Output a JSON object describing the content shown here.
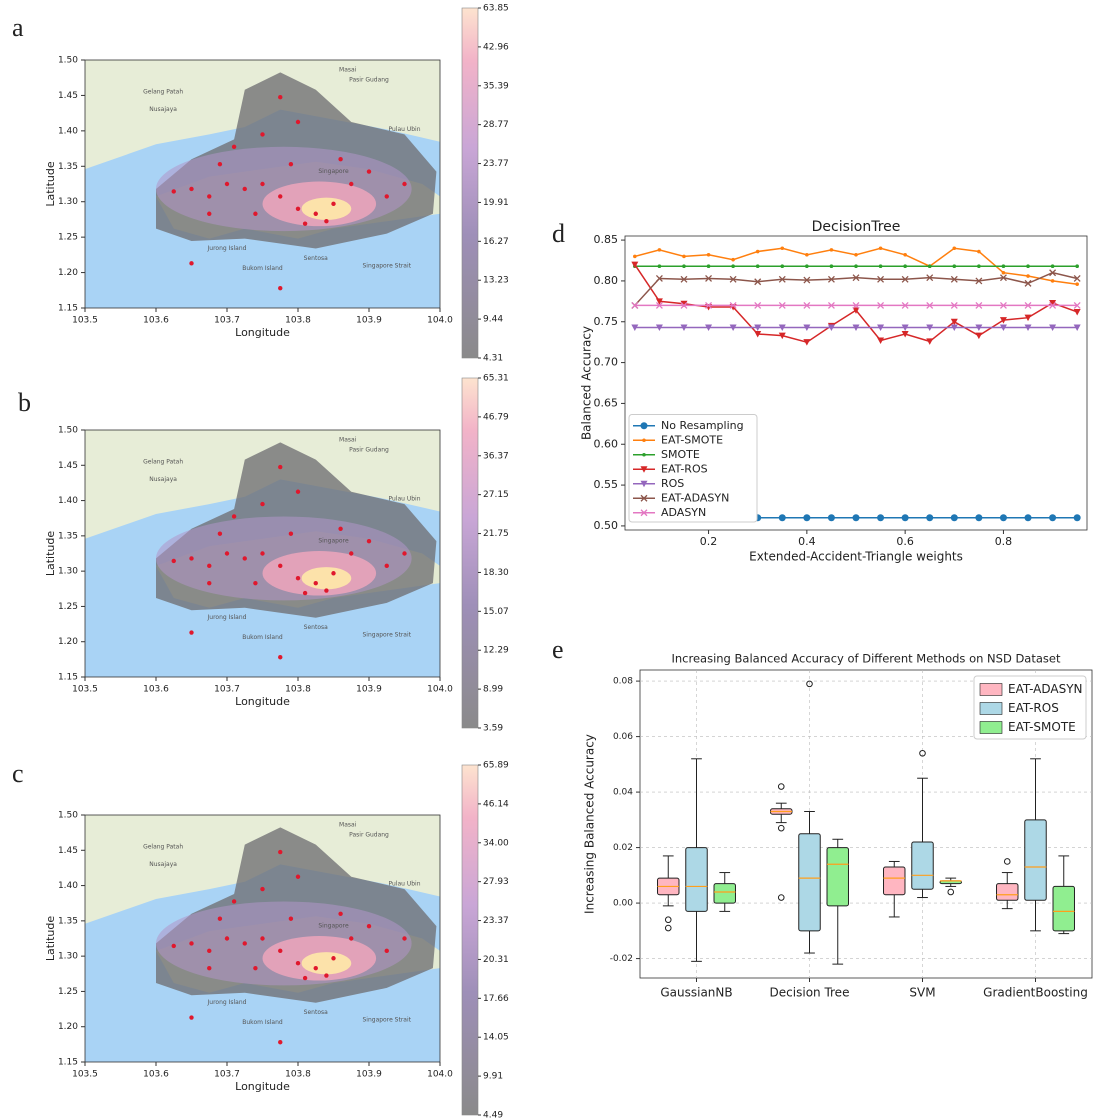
{
  "chart_data": [
    {
      "type": "map",
      "panel": "a",
      "xlabel": "Longitude",
      "ylabel": "Latitude",
      "xlim": [
        103.5,
        104.0
      ],
      "xticks": [
        103.5,
        103.6,
        103.7,
        103.8,
        103.9,
        {
          "value": 104.0,
          "label": "104.0"
        }
      ],
      "ylim": [
        1.15,
        1.5
      ],
      "yticks": [
        1.15,
        {
          "value": 1.2,
          "label": "1.20"
        },
        1.25,
        {
          "value": 1.3,
          "label": "1.30"
        },
        1.35,
        {
          "value": 1.4,
          "label": "1.40"
        },
        1.45,
        {
          "value": 1.5,
          "label": "1.50"
        }
      ],
      "colorbar_ticks": [
        4.31,
        9.44,
        13.23,
        16.27,
        19.91,
        23.77,
        28.77,
        35.39,
        42.96,
        63.85
      ],
      "places": [
        "Masai",
        "Pasir Gudang",
        "Gelang Patah",
        "Nusajaya",
        "Pulau Ubin",
        "Singapore",
        "Jurong Island",
        "Bukom Island",
        "Sentosa",
        "Singapore Strait"
      ]
    },
    {
      "type": "map",
      "panel": "b",
      "xlabel": "Longitude",
      "ylabel": "Latitude",
      "xlim": [
        103.5,
        104.0
      ],
      "xticks": [
        103.5,
        103.6,
        103.7,
        103.8,
        103.9,
        {
          "value": 104.0,
          "label": "104.0"
        }
      ],
      "ylim": [
        1.15,
        1.5
      ],
      "yticks": [
        1.15,
        {
          "value": 1.2,
          "label": "1.20"
        },
        1.25,
        {
          "value": 1.3,
          "label": "1.30"
        },
        1.35,
        {
          "value": 1.4,
          "label": "1.40"
        },
        1.45,
        {
          "value": 1.5,
          "label": "1.50"
        }
      ],
      "colorbar_ticks": [
        3.59,
        8.99,
        12.29,
        15.07,
        {
          "value": 18.3,
          "label": "18.30"
        },
        21.75,
        27.15,
        36.37,
        46.79,
        65.31
      ],
      "places": [
        "Masai",
        "Pasir Gudang",
        "Gelang Patah",
        "Nusajaya",
        "Pulau Ubin",
        "Singapore",
        "Jurong Island",
        "Bukom Island",
        "Sentosa",
        "Singapore Strait"
      ]
    },
    {
      "type": "map",
      "panel": "c",
      "xlabel": "Longitude",
      "ylabel": "Latitude",
      "xlim": [
        103.5,
        104.0
      ],
      "xticks": [
        103.5,
        103.6,
        103.7,
        103.8,
        103.9,
        {
          "value": 104.0,
          "label": "104.0"
        }
      ],
      "ylim": [
        1.15,
        1.5
      ],
      "yticks": [
        1.15,
        {
          "value": 1.2,
          "label": "1.20"
        },
        1.25,
        {
          "value": 1.3,
          "label": "1.30"
        },
        1.35,
        {
          "value": 1.4,
          "label": "1.40"
        },
        1.45,
        {
          "value": 1.5,
          "label": "1.50"
        }
      ],
      "colorbar_ticks": [
        4.49,
        9.91,
        14.05,
        17.66,
        20.31,
        23.37,
        27.93,
        {
          "value": 34.0,
          "label": "34.00"
        },
        46.14,
        65.89
      ],
      "places": [
        "Masai",
        "Pasir Gudang",
        "Gelang Patah",
        "Nusajaya",
        "Pulau Ubin",
        "Singapore",
        "Jurong Island",
        "Bukom Island",
        "Sentosa",
        "Singapore Strait"
      ]
    },
    {
      "type": "line",
      "panel": "d",
      "title": "DecisionTree",
      "xlabel": "Extended-Accident-Triangle weights",
      "ylabel": "Balanced Accuracy",
      "x": [
        0.05,
        0.1,
        0.15,
        0.2,
        0.25,
        0.3,
        0.35,
        0.4,
        0.45,
        0.5,
        0.55,
        0.6,
        0.65,
        0.7,
        0.75,
        0.8,
        0.85,
        0.9,
        0.95
      ],
      "xlim": [
        0.03,
        0.97
      ],
      "xticks": [
        0.2,
        0.4,
        0.6,
        0.8
      ],
      "ylim": [
        0.495,
        0.855
      ],
      "yticks": [
        {
          "value": 0.5,
          "label": "0.50"
        },
        0.55,
        {
          "value": 0.6,
          "label": "0.60"
        },
        0.65,
        {
          "value": 0.7,
          "label": "0.70"
        },
        0.75,
        {
          "value": 0.8,
          "label": "0.80"
        },
        0.85
      ],
      "legend": "lower left",
      "series": [
        {
          "name": "No Resampling",
          "color": "#1f77b4",
          "marker": "circle",
          "values": [
            0.51,
            0.51,
            0.51,
            0.51,
            0.51,
            0.51,
            0.51,
            0.51,
            0.51,
            0.51,
            0.51,
            0.51,
            0.51,
            0.51,
            0.51,
            0.51,
            0.51,
            0.51,
            0.51
          ]
        },
        {
          "name": "EAT-SMOTE",
          "color": "#ff7f0e",
          "marker": "point",
          "values": [
            0.83,
            0.838,
            0.83,
            0.832,
            0.826,
            0.836,
            0.84,
            0.832,
            0.838,
            0.832,
            0.84,
            0.832,
            0.818,
            0.84,
            0.836,
            0.81,
            0.806,
            0.8,
            0.796
          ]
        },
        {
          "name": "SMOTE",
          "color": "#2ca02c",
          "marker": "point",
          "values": [
            0.818,
            0.818,
            0.818,
            0.818,
            0.818,
            0.818,
            0.818,
            0.818,
            0.818,
            0.818,
            0.818,
            0.818,
            0.818,
            0.818,
            0.818,
            0.818,
            0.818,
            0.818,
            0.818
          ]
        },
        {
          "name": "EAT-ROS",
          "color": "#d62728",
          "marker": "triangle_down",
          "values": [
            0.82,
            0.775,
            0.772,
            0.768,
            0.768,
            0.735,
            0.733,
            0.725,
            0.745,
            0.764,
            0.727,
            0.735,
            0.726,
            0.75,
            0.733,
            0.752,
            0.755,
            0.773,
            0.762
          ]
        },
        {
          "name": "ROS",
          "color": "#9467bd",
          "marker": "triangle_down",
          "values": [
            0.743,
            0.743,
            0.743,
            0.743,
            0.743,
            0.743,
            0.743,
            0.743,
            0.743,
            0.743,
            0.743,
            0.743,
            0.743,
            0.743,
            0.743,
            0.743,
            0.743,
            0.743,
            0.743
          ]
        },
        {
          "name": "EAT-ADASYN",
          "color": "#8c564b",
          "marker": "x",
          "values": [
            0.77,
            0.803,
            0.802,
            0.803,
            0.802,
            0.799,
            0.802,
            0.801,
            0.802,
            0.804,
            0.802,
            0.802,
            0.804,
            0.802,
            0.8,
            0.804,
            0.797,
            0.81,
            0.803
          ]
        },
        {
          "name": "ADASYN",
          "color": "#e377c2",
          "marker": "x",
          "values": [
            0.77,
            0.77,
            0.77,
            0.77,
            0.77,
            0.77,
            0.77,
            0.77,
            0.77,
            0.77,
            0.77,
            0.77,
            0.77,
            0.77,
            0.77,
            0.77,
            0.77,
            0.77,
            0.77
          ]
        }
      ]
    },
    {
      "type": "box",
      "panel": "e",
      "title": "Increasing Balanced Accuracy of Different Methods on NSD Dataset",
      "ylabel": "Increasing Balanced Accuracy",
      "categories": [
        "GaussianNB",
        "Decision Tree",
        "SVM",
        "GradientBoosting"
      ],
      "ylim": [
        -0.027,
        0.084
      ],
      "yticks": [
        -0.02,
        {
          "value": 0,
          "label": "0.00"
        },
        0.02,
        0.04,
        0.06,
        0.08
      ],
      "grid": true,
      "legend": "upper right",
      "median_color": "#ff9f1c",
      "series": [
        {
          "name": "EAT-ADASYN",
          "color": "#ffb6c1",
          "boxes": [
            {
              "min": -0.001,
              "q1": 0.003,
              "median": 0.006,
              "q3": 0.009,
              "max": 0.017,
              "outliers": [
                -0.006,
                -0.009
              ]
            },
            {
              "min": 0.029,
              "q1": 0.032,
              "median": 0.033,
              "q3": 0.034,
              "max": 0.036,
              "outliers": [
                0.042,
                0.027,
                0.002
              ]
            },
            {
              "min": -0.005,
              "q1": 0.003,
              "median": 0.009,
              "q3": 0.013,
              "max": 0.015,
              "outliers": []
            },
            {
              "min": -0.002,
              "q1": 0.001,
              "median": 0.003,
              "q3": 0.007,
              "max": 0.011,
              "outliers": [
                0.015
              ]
            }
          ]
        },
        {
          "name": "EAT-ROS",
          "color": "#add8e6",
          "boxes": [
            {
              "min": -0.021,
              "q1": -0.003,
              "median": 0.006,
              "q3": 0.02,
              "max": 0.052,
              "outliers": []
            },
            {
              "min": -0.018,
              "q1": -0.01,
              "median": 0.009,
              "q3": 0.025,
              "max": 0.033,
              "outliers": [
                0.079
              ]
            },
            {
              "min": 0.002,
              "q1": 0.005,
              "median": 0.01,
              "q3": 0.022,
              "max": 0.045,
              "outliers": [
                0.054
              ]
            },
            {
              "min": -0.01,
              "q1": 0.001,
              "median": 0.013,
              "q3": 0.03,
              "max": 0.052,
              "outliers": []
            }
          ]
        },
        {
          "name": "EAT-SMOTE",
          "color": "#90ee90",
          "boxes": [
            {
              "min": -0.003,
              "q1": 0,
              "median": 0.004,
              "q3": 0.007,
              "max": 0.011,
              "outliers": []
            },
            {
              "min": -0.022,
              "q1": -0.001,
              "median": 0.014,
              "q3": 0.02,
              "max": 0.023,
              "outliers": []
            },
            {
              "min": 0.006,
              "q1": 0.007,
              "median": 0.008,
              "q3": 0.008,
              "max": 0.009,
              "outliers": [
                0.004
              ]
            },
            {
              "min": -0.011,
              "q1": -0.01,
              "median": -0.003,
              "q3": 0.006,
              "max": 0.017,
              "outliers": []
            }
          ]
        }
      ]
    }
  ]
}
